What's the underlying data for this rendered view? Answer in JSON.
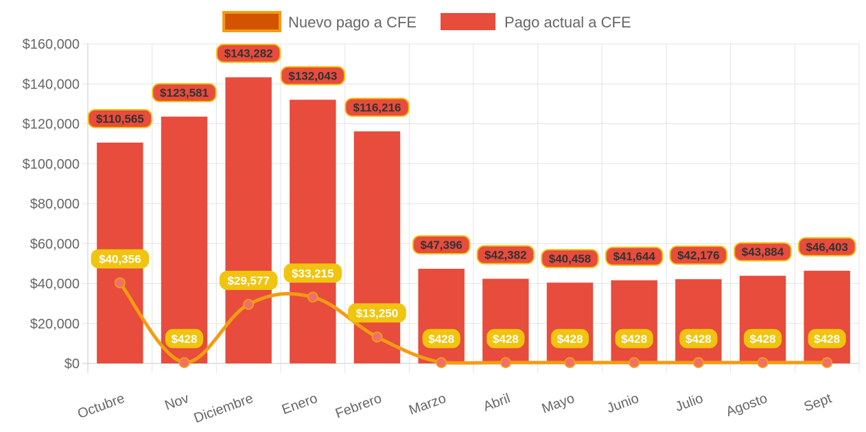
{
  "chart_data": {
    "type": "bar",
    "categories": [
      "Octubre",
      "Nov",
      "Diciembre",
      "Enero",
      "Febrero",
      "Marzo",
      "Abril",
      "Mayo",
      "Junio",
      "Julio",
      "Agosto",
      "Sept"
    ],
    "series": [
      {
        "name": "Nuevo pago a CFE",
        "type": "line",
        "values": [
          40356,
          428,
          29577,
          33215,
          13250,
          428,
          428,
          428,
          428,
          428,
          428,
          428
        ],
        "labels": [
          "$40,356",
          "$428",
          "$29,577",
          "$33,215",
          "$13,250",
          "$428",
          "$428",
          "$428",
          "$428",
          "$428",
          "$428",
          "$428"
        ],
        "color": "#f39c12",
        "legend_fill": "#d35400",
        "point_color": "#ef6f6c",
        "label_bg": "#f1c40f",
        "label_text_color": "#ffffff"
      },
      {
        "name": "Pago actual a CFE",
        "type": "bar",
        "values": [
          110565,
          123581,
          143282,
          132043,
          116216,
          47396,
          42382,
          40458,
          41644,
          42176,
          43884,
          46403
        ],
        "labels": [
          "$110,565",
          "$123,581",
          "$143,282",
          "$132,043",
          "$116,216",
          "$47,396",
          "$42,382",
          "$40,458",
          "$41,644",
          "$42,176",
          "$43,884",
          "$46,403"
        ],
        "color": "#e74c3c",
        "label_bg": "#e74c3c",
        "label_border": "#f1c40f",
        "label_text_color": "#333333"
      }
    ],
    "ylim": [
      0,
      160000
    ],
    "yticks": [
      0,
      20000,
      40000,
      60000,
      80000,
      100000,
      120000,
      140000,
      160000
    ],
    "ytick_labels": [
      "$0",
      "$20,000",
      "$40,000",
      "$60,000",
      "$80,000",
      "$100,000",
      "$120,000",
      "$140,000",
      "$160,000"
    ],
    "title": "",
    "xlabel": "",
    "ylabel": "",
    "grid": true,
    "legend_position": "top-center"
  }
}
